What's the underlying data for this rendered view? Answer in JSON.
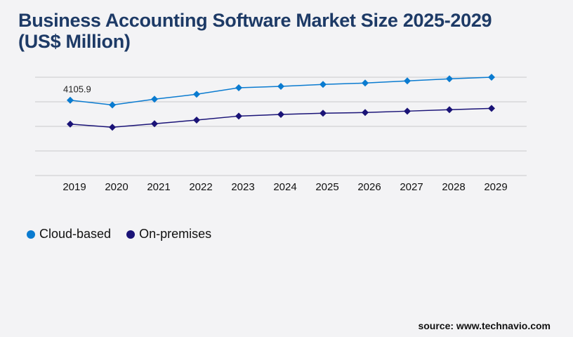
{
  "chart_data": {
    "type": "line",
    "title": "Business Accounting Software Market Size 2025-2029 (US$ Million)",
    "categories": [
      "2019",
      "2020",
      "2021",
      "2022",
      "2023",
      "2024",
      "2025",
      "2026",
      "2027",
      "2028",
      "2029"
    ],
    "series": [
      {
        "name": "Cloud-based",
        "color": "#0a7bd0",
        "values": [
          4105.9,
          3846,
          4160,
          4428,
          4784,
          4860,
          4964,
          5040,
          5155,
          5270,
          5358
        ]
      },
      {
        "name": "On-premises",
        "color": "#1a1377",
        "values": [
          2805,
          2629,
          2821,
          3023,
          3241,
          3329,
          3395,
          3433,
          3509,
          3586,
          3662
        ]
      }
    ],
    "data_labels": [
      {
        "series": 0,
        "index": 0,
        "text": "4105.9"
      }
    ],
    "ylim": [
      0,
      5358
    ],
    "y_gridlines": 5,
    "y_tick_labels_shown": false,
    "grid": true,
    "legend_placement": "bottom-left"
  },
  "source": "source: www.technavio.com"
}
